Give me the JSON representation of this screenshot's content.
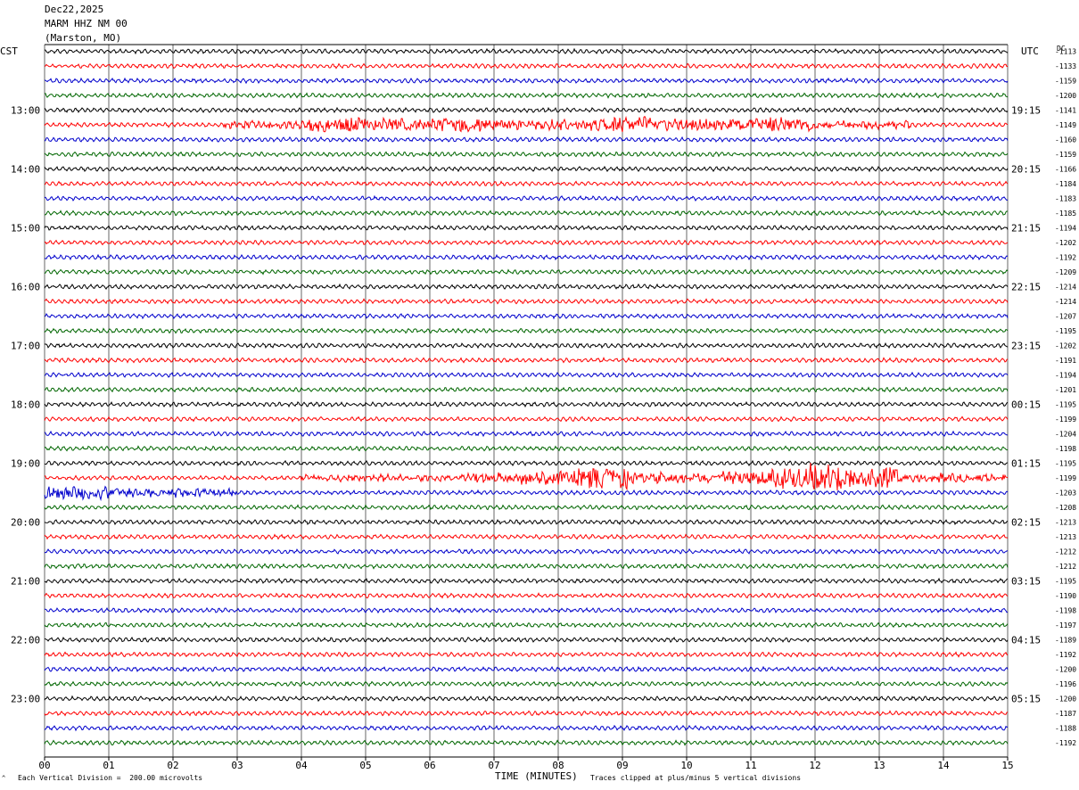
{
  "header": {
    "date": "Dec22,2025",
    "station": "MARM HHZ NM 00",
    "location": "(Marston, MO)"
  },
  "left_timezone": "CST",
  "right_timezone": "UTC",
  "dc_label": "DC",
  "footer": {
    "scale_text": "Each Vertical Division =  200.00 microvolts",
    "xlabel": "TIME (MINUTES)",
    "clip_text": "Traces clipped at plus/minus 5 vertical divisions",
    "corner_mark": "^"
  },
  "chart_data": {
    "type": "line",
    "title": "",
    "xlabel": "TIME (MINUTES)",
    "ylabel": "",
    "xlim": [
      0,
      15
    ],
    "x_ticks": [
      "00",
      "01",
      "02",
      "03",
      "04",
      "05",
      "06",
      "07",
      "08",
      "09",
      "10",
      "11",
      "12",
      "13",
      "14",
      "15"
    ],
    "grid": "vertical lines at each minute",
    "trace_colors": [
      "#000000",
      "#ff0000",
      "#0000cc",
      "#006600"
    ],
    "traces_per_hour": 4,
    "left_hour_labels": [
      "13:00",
      "14:00",
      "15:00",
      "16:00",
      "17:00",
      "18:00",
      "19:00",
      "20:00",
      "21:00",
      "22:00",
      "23:00"
    ],
    "right_hour_labels": [
      "19:15",
      "20:15",
      "21:15",
      "22:15",
      "23:15",
      "00:15",
      "01:15",
      "02:15",
      "03:15",
      "04:15",
      "05:15"
    ],
    "dc_offsets": [
      -1113,
      -1133,
      -1159,
      -1200,
      -1141,
      -1149,
      -1160,
      -1159,
      -1166,
      -1184,
      -1183,
      -1185,
      -1194,
      -1202,
      -1192,
      -1209,
      -1214,
      -1214,
      -1207,
      -1195,
      -1202,
      -1191,
      -1194,
      -1201,
      -1195,
      -1199,
      -1204,
      -1198,
      -1195,
      -1199,
      -1203,
      -1208,
      -1213,
      -1213,
      -1212,
      -1212,
      -1195,
      -1190,
      -1198,
      -1197,
      -1189,
      -1192,
      -1200,
      -1196,
      -1200,
      -1187,
      -1188,
      -1192
    ],
    "events": [
      {
        "trace": 5,
        "segments": [
          [
            2.8,
            4.1,
            0.25
          ],
          [
            4.1,
            5.0,
            0.55
          ],
          [
            5.0,
            6.2,
            0.45
          ],
          [
            6.2,
            6.9,
            0.6
          ],
          [
            6.9,
            8.7,
            0.4
          ],
          [
            8.7,
            9.6,
            0.65
          ],
          [
            9.6,
            11.0,
            0.45
          ],
          [
            11.0,
            12.0,
            0.6
          ],
          [
            12.0,
            13.5,
            0.25
          ]
        ]
      },
      {
        "trace": 29,
        "segments": [
          [
            4.0,
            6.5,
            0.2
          ],
          [
            6.5,
            7.3,
            0.35
          ],
          [
            7.3,
            8.3,
            0.55
          ],
          [
            8.3,
            9.1,
            0.9
          ],
          [
            9.1,
            10.5,
            0.4
          ],
          [
            10.5,
            11.3,
            0.6
          ],
          [
            11.3,
            11.9,
            0.85
          ],
          [
            11.9,
            12.6,
            1.2
          ],
          [
            12.6,
            13.3,
            0.9
          ],
          [
            13.3,
            15.0,
            0.3
          ]
        ]
      },
      {
        "trace": 30,
        "segments": [
          [
            0.0,
            1.0,
            0.5
          ],
          [
            1.0,
            3.0,
            0.3
          ]
        ]
      }
    ]
  }
}
